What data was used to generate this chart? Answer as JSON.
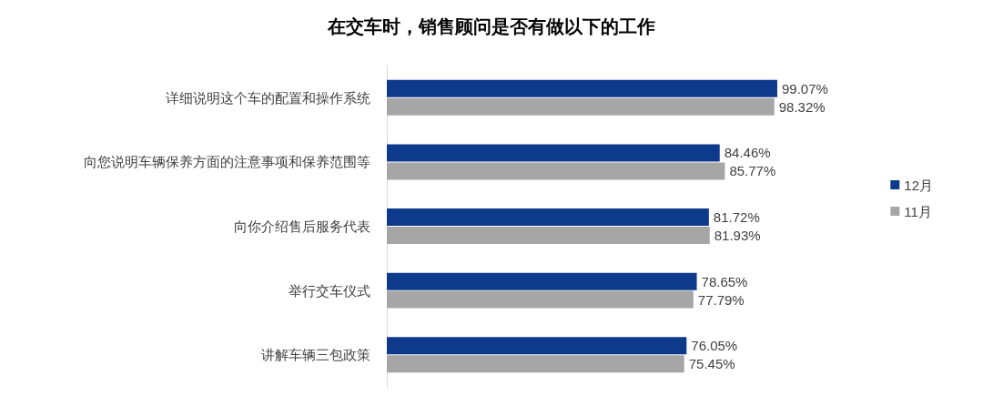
{
  "chart_data": {
    "type": "bar",
    "orientation": "horizontal",
    "title": "在交车时，销售顾问是否有做以下的工作",
    "categories": [
      "详细说明这个车的配置和操作系统",
      "向您说明车辆保养方面的注意事项和保养范围等",
      "向你介绍售后服务代表",
      "举行交车仪式",
      "讲解车辆三包政策"
    ],
    "series": [
      {
        "name": "12月",
        "color": "#0e3a8c",
        "values": [
          99.07,
          84.46,
          81.72,
          78.65,
          76.05
        ],
        "value_labels": [
          "99.07%",
          "84.46%",
          "81.72%",
          "78.65%",
          "76.05%"
        ]
      },
      {
        "name": "11月",
        "color": "#a6a6a6",
        "values": [
          98.32,
          85.77,
          81.93,
          77.79,
          75.45
        ],
        "value_labels": [
          "98.32%",
          "85.77%",
          "81.93%",
          "77.79%",
          "75.45%"
        ]
      }
    ],
    "legend": "right",
    "tick_labels": "y"
  }
}
